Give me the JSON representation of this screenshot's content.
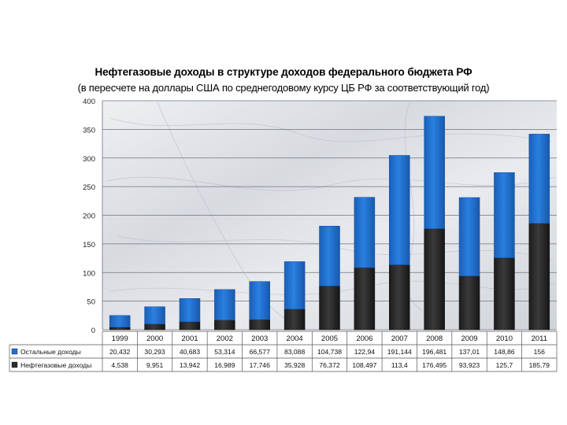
{
  "chart_data": {
    "type": "bar",
    "stacked": true,
    "title": "Нефтегазовые доходы в структуре доходов федерального бюджета РФ",
    "subtitle": "(в пересчете на доллары США по среднегодовому курсу ЦБ РФ за соответствующий год)",
    "categories": [
      "1999",
      "2000",
      "2001",
      "2002",
      "2003",
      "2004",
      "2005",
      "2006",
      "2007",
      "2008",
      "2009",
      "2010",
      "2011"
    ],
    "ylim": [
      0,
      400
    ],
    "yticks": [
      "0",
      "50",
      "100",
      "150",
      "200",
      "250",
      "300",
      "350",
      "400"
    ],
    "ytick_values": [
      0,
      50,
      100,
      150,
      200,
      250,
      300,
      350,
      400
    ],
    "grid": true,
    "legend": "data-table",
    "series": [
      {
        "name": "Нефтегазовые доходы",
        "color": "#2b2b2b",
        "values": [
          4.538,
          9.951,
          13.942,
          16.989,
          17.746,
          35.928,
          76.372,
          108.497,
          113.4,
          176.495,
          93.923,
          125.7,
          185.79
        ],
        "labels": [
          "4,538",
          "9,951",
          "13,942",
          "16,989",
          "17,746",
          "35,928",
          "76,372",
          "108,497",
          "113,4",
          "176,495",
          "93,923",
          "125,7",
          "185,79"
        ]
      },
      {
        "name": "Остальные доходы",
        "color": "#1f6fd1",
        "values": [
          20.432,
          30.293,
          40.683,
          53.314,
          66.577,
          83.088,
          104.738,
          122.94,
          191.144,
          196.481,
          137.01,
          148.86,
          156
        ],
        "labels": [
          "20,432",
          "30,293",
          "40,683",
          "53,314",
          "66,577",
          "83,088",
          "104,738",
          "122,94",
          "191,144",
          "196,481",
          "137,01",
          "148,86",
          "156"
        ]
      }
    ]
  }
}
